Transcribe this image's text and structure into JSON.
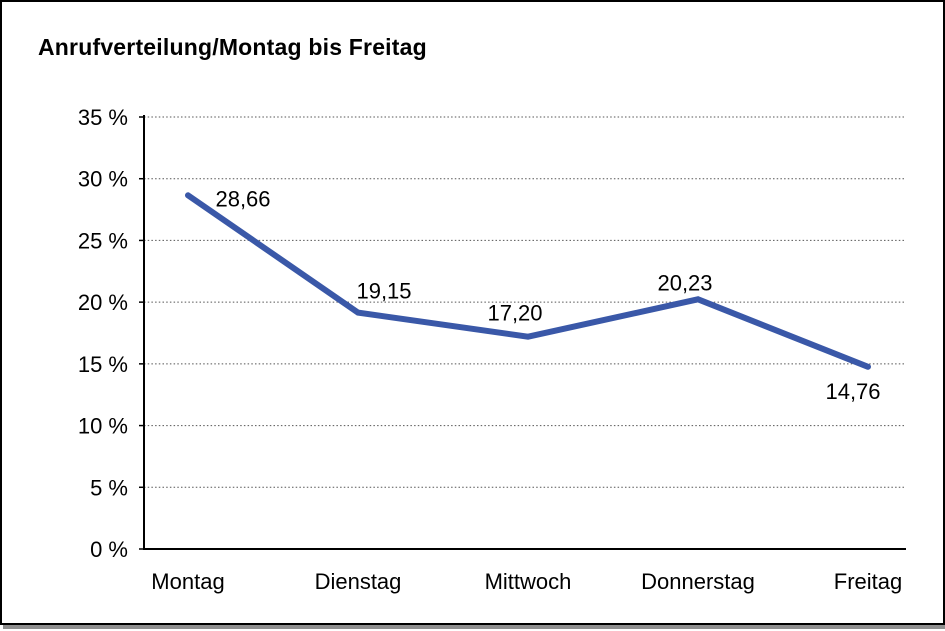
{
  "title": "Anrufverteilung/Montag bis Freitag",
  "colors": {
    "line": "#3A58A8",
    "grid": "#555555",
    "axis": "#000000",
    "text": "#000000",
    "background": "#FFFFFF",
    "border": "#000000",
    "shadow": "#8F8F8F"
  },
  "chart_data": {
    "type": "line",
    "title": "Anrufverteilung/Montag bis Freitag",
    "categories": [
      "Montag",
      "Dienstag",
      "Mittwoch",
      "Donnerstag",
      "Freitag"
    ],
    "series": [
      {
        "name": "Anrufverteilung",
        "values": [
          28.66,
          19.15,
          17.2,
          20.23,
          14.76
        ]
      }
    ],
    "point_labels": [
      "28,66",
      "19,15",
      "17,20",
      "20,23",
      "14,76"
    ],
    "ytick_values": [
      0,
      5,
      10,
      15,
      20,
      25,
      30,
      35
    ],
    "ytick_labels": [
      "0 %",
      "5 %",
      "10 %",
      "15 %",
      "20 %",
      "25 %",
      "30 %",
      "35 %"
    ],
    "ylim": [
      0,
      35
    ],
    "xlabel": "",
    "ylabel": "",
    "grid": "dotted-horizontal",
    "legend": "none"
  }
}
